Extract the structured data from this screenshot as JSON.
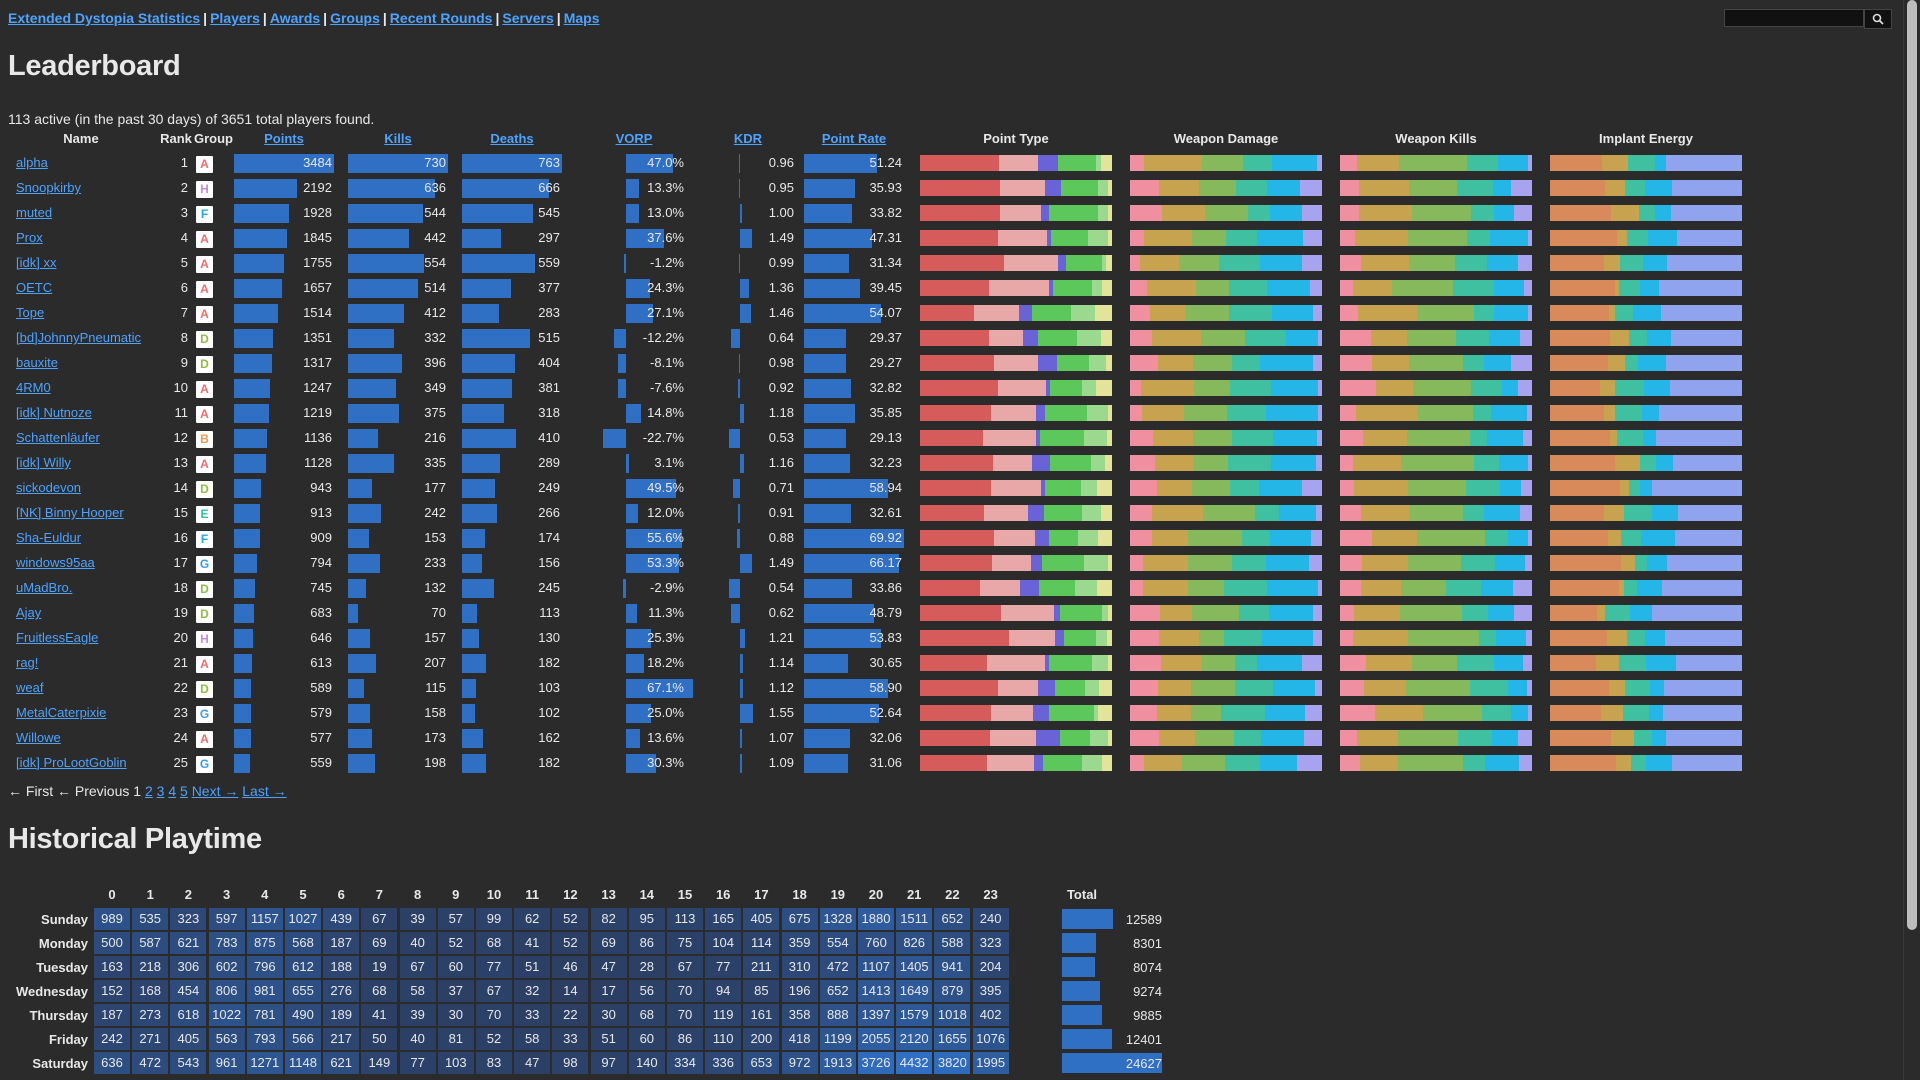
{
  "nav": {
    "links": [
      "Extended Dystopia Statistics",
      "Players",
      "Awards",
      "Groups",
      "Recent Rounds",
      "Servers",
      "Maps"
    ],
    "search_placeholder": ""
  },
  "leaderboard": {
    "title": "Leaderboard",
    "summary": "113 active (in the past 30 days) of 3651 total players found.",
    "headers": {
      "name": "Name",
      "rank": "Rank",
      "group": "Group",
      "points": "Points",
      "kills": "Kills",
      "deaths": "Deaths",
      "vorp": "VORP",
      "kdr": "KDR",
      "point_rate": "Point Rate",
      "point_type": "Point Type",
      "weapon_damage": "Weapon Damage",
      "weapon_kills": "Weapon Kills",
      "implant_energy": "Implant Energy"
    },
    "group_colors": {
      "A": "#ef6b6b",
      "H": "#c78be0",
      "F": "#23a8e0",
      "D": "#8fbf3f",
      "B": "#ee9955",
      "E": "#2bbf9f",
      "G": "#3a9de8"
    },
    "stack_colors": {
      "point_type": [
        "#d65b5b",
        "#e8a8a8",
        "#6a63d8",
        "#5cc85c",
        "#9ad98e",
        "#e3e39a",
        "#cfcf55"
      ],
      "weapon_damage": [
        "#ef8fa0",
        "#c7a24f",
        "#86b85c",
        "#3fc0a0",
        "#25b6e8",
        "#a8a3ef"
      ],
      "weapon_kills": [
        "#ef8fa0",
        "#c7a24f",
        "#86b85c",
        "#3fc0a0",
        "#25b6e8",
        "#a8a3ef"
      ],
      "implant_energy": [
        "#d98a5a",
        "#c7a24f",
        "#3fc0a0",
        "#25b6e8",
        "#8fa3ef",
        "#e8a0c8"
      ]
    },
    "rows": [
      {
        "name": "alpha",
        "rank": "1",
        "group": "A",
        "points": 3484,
        "kills": 730,
        "deaths": 763,
        "vorp": "47.0%",
        "vorp_num": 47.0,
        "kdr": "0.96",
        "kdr_num": 0.96,
        "rate": "51.24",
        "rate_num": 51.24
      },
      {
        "name": "Snoopkirby",
        "rank": "2",
        "group": "H",
        "points": 2192,
        "kills": 636,
        "deaths": 666,
        "vorp": "13.3%",
        "vorp_num": 13.3,
        "kdr": "0.95",
        "kdr_num": 0.95,
        "rate": "35.93",
        "rate_num": 35.93
      },
      {
        "name": "muted",
        "rank": "3",
        "group": "F",
        "points": 1928,
        "kills": 544,
        "deaths": 545,
        "vorp": "13.0%",
        "vorp_num": 13.0,
        "kdr": "1.00",
        "kdr_num": 1.0,
        "rate": "33.82",
        "rate_num": 33.82
      },
      {
        "name": "Prox",
        "rank": "4",
        "group": "A",
        "points": 1845,
        "kills": 442,
        "deaths": 297,
        "vorp": "37.6%",
        "vorp_num": 37.6,
        "kdr": "1.49",
        "kdr_num": 1.49,
        "rate": "47.31",
        "rate_num": 47.31
      },
      {
        "name": "[idk] xx",
        "rank": "5",
        "group": "A",
        "points": 1755,
        "kills": 554,
        "deaths": 559,
        "vorp": "-1.2%",
        "vorp_num": -1.2,
        "kdr": "0.99",
        "kdr_num": 0.99,
        "rate": "31.34",
        "rate_num": 31.34
      },
      {
        "name": "OETC",
        "rank": "6",
        "group": "A",
        "points": 1657,
        "kills": 514,
        "deaths": 377,
        "vorp": "24.3%",
        "vorp_num": 24.3,
        "kdr": "1.36",
        "kdr_num": 1.36,
        "rate": "39.45",
        "rate_num": 39.45
      },
      {
        "name": "Tope",
        "rank": "7",
        "group": "A",
        "points": 1514,
        "kills": 412,
        "deaths": 283,
        "vorp": "27.1%",
        "vorp_num": 27.1,
        "kdr": "1.46",
        "kdr_num": 1.46,
        "rate": "54.07",
        "rate_num": 54.07
      },
      {
        "name": "[bd]JohnnyPneumatic",
        "rank": "8",
        "group": "D",
        "points": 1351,
        "kills": 332,
        "deaths": 515,
        "vorp": "-12.2%",
        "vorp_num": -12.2,
        "kdr": "0.64",
        "kdr_num": 0.64,
        "rate": "29.37",
        "rate_num": 29.37
      },
      {
        "name": "bauxite",
        "rank": "9",
        "group": "D",
        "points": 1317,
        "kills": 396,
        "deaths": 404,
        "vorp": "-8.1%",
        "vorp_num": -8.1,
        "kdr": "0.98",
        "kdr_num": 0.98,
        "rate": "29.27",
        "rate_num": 29.27
      },
      {
        "name": "4RM0",
        "rank": "10",
        "group": "A",
        "points": 1247,
        "kills": 349,
        "deaths": 381,
        "vorp": "-7.6%",
        "vorp_num": -7.6,
        "kdr": "0.92",
        "kdr_num": 0.92,
        "rate": "32.82",
        "rate_num": 32.82
      },
      {
        "name": "[idk] Nutnoze",
        "rank": "11",
        "group": "A",
        "points": 1219,
        "kills": 375,
        "deaths": 318,
        "vorp": "14.8%",
        "vorp_num": 14.8,
        "kdr": "1.18",
        "kdr_num": 1.18,
        "rate": "35.85",
        "rate_num": 35.85
      },
      {
        "name": "Schattenläufer",
        "rank": "12",
        "group": "B",
        "points": 1136,
        "kills": 216,
        "deaths": 410,
        "vorp": "-22.7%",
        "vorp_num": -22.7,
        "kdr": "0.53",
        "kdr_num": 0.53,
        "rate": "29.13",
        "rate_num": 29.13
      },
      {
        "name": "[idk] Willy",
        "rank": "13",
        "group": "A",
        "points": 1128,
        "kills": 335,
        "deaths": 289,
        "vorp": "3.1%",
        "vorp_num": 3.1,
        "kdr": "1.16",
        "kdr_num": 1.16,
        "rate": "32.23",
        "rate_num": 32.23
      },
      {
        "name": "sickodevon",
        "rank": "14",
        "group": "D",
        "points": 943,
        "kills": 177,
        "deaths": 249,
        "vorp": "49.5%",
        "vorp_num": 49.5,
        "kdr": "0.71",
        "kdr_num": 0.71,
        "rate": "58.94",
        "rate_num": 58.94
      },
      {
        "name": "[NK] Binny Hooper",
        "rank": "15",
        "group": "E",
        "points": 913,
        "kills": 242,
        "deaths": 266,
        "vorp": "12.0%",
        "vorp_num": 12.0,
        "kdr": "0.91",
        "kdr_num": 0.91,
        "rate": "32.61",
        "rate_num": 32.61
      },
      {
        "name": "Sha-Euldur",
        "rank": "16",
        "group": "F",
        "points": 909,
        "kills": 153,
        "deaths": 174,
        "vorp": "55.6%",
        "vorp_num": 55.6,
        "kdr": "0.88",
        "kdr_num": 0.88,
        "rate": "69.92",
        "rate_num": 69.92
      },
      {
        "name": "windows95aa",
        "rank": "17",
        "group": "G",
        "points": 794,
        "kills": 233,
        "deaths": 156,
        "vorp": "53.3%",
        "vorp_num": 53.3,
        "kdr": "1.49",
        "kdr_num": 1.49,
        "rate": "66.17",
        "rate_num": 66.17
      },
      {
        "name": "uMadBro.",
        "rank": "18",
        "group": "D",
        "points": 745,
        "kills": 132,
        "deaths": 245,
        "vorp": "-2.9%",
        "vorp_num": -2.9,
        "kdr": "0.54",
        "kdr_num": 0.54,
        "rate": "33.86",
        "rate_num": 33.86
      },
      {
        "name": "Ajay",
        "rank": "19",
        "group": "D",
        "points": 683,
        "kills": 70,
        "deaths": 113,
        "vorp": "11.3%",
        "vorp_num": 11.3,
        "kdr": "0.62",
        "kdr_num": 0.62,
        "rate": "48.79",
        "rate_num": 48.79
      },
      {
        "name": "FruitlessEagle",
        "rank": "20",
        "group": "H",
        "points": 646,
        "kills": 157,
        "deaths": 130,
        "vorp": "25.3%",
        "vorp_num": 25.3,
        "kdr": "1.21",
        "kdr_num": 1.21,
        "rate": "53.83",
        "rate_num": 53.83
      },
      {
        "name": "rag!",
        "rank": "21",
        "group": "A",
        "points": 613,
        "kills": 207,
        "deaths": 182,
        "vorp": "18.2%",
        "vorp_num": 18.2,
        "kdr": "1.14",
        "kdr_num": 1.14,
        "rate": "30.65",
        "rate_num": 30.65
      },
      {
        "name": "weaf",
        "rank": "22",
        "group": "D",
        "points": 589,
        "kills": 115,
        "deaths": 103,
        "vorp": "67.1%",
        "vorp_num": 67.1,
        "kdr": "1.12",
        "kdr_num": 1.12,
        "rate": "58.90",
        "rate_num": 58.9
      },
      {
        "name": "MetalCaterpixie",
        "rank": "23",
        "group": "G",
        "points": 579,
        "kills": 158,
        "deaths": 102,
        "vorp": "25.0%",
        "vorp_num": 25.0,
        "kdr": "1.55",
        "kdr_num": 1.55,
        "rate": "52.64",
        "rate_num": 52.64
      },
      {
        "name": "Willowe",
        "rank": "24",
        "group": "A",
        "points": 577,
        "kills": 173,
        "deaths": 162,
        "vorp": "13.6%",
        "vorp_num": 13.6,
        "kdr": "1.07",
        "kdr_num": 1.07,
        "rate": "32.06",
        "rate_num": 32.06
      },
      {
        "name": "[idk] ProLootGoblin",
        "rank": "25",
        "group": "G",
        "points": 559,
        "kills": 198,
        "deaths": 182,
        "vorp": "30.3%",
        "vorp_num": 30.3,
        "kdr": "1.09",
        "kdr_num": 1.09,
        "rate": "31.06",
        "rate_num": 31.06
      }
    ],
    "pagination": {
      "first": "← First",
      "prev": "← Previous",
      "current": "1",
      "pages": [
        "2",
        "3",
        "4",
        "5"
      ],
      "next": "Next →",
      "last": "Last →"
    }
  },
  "playtime": {
    "title": "Historical Playtime",
    "hours": [
      "0",
      "1",
      "2",
      "3",
      "4",
      "5",
      "6",
      "7",
      "8",
      "9",
      "10",
      "11",
      "12",
      "13",
      "14",
      "15",
      "16",
      "17",
      "18",
      "19",
      "20",
      "21",
      "22",
      "23"
    ],
    "total_label": "Total",
    "rows": [
      {
        "day": "Sunday",
        "values": [
          989,
          535,
          323,
          597,
          1157,
          1027,
          439,
          67,
          39,
          57,
          99,
          62,
          52,
          82,
          95,
          113,
          165,
          405,
          675,
          1328,
          1880,
          1511,
          652,
          240
        ],
        "total": 12589
      },
      {
        "day": "Monday",
        "values": [
          500,
          587,
          621,
          783,
          875,
          568,
          187,
          69,
          40,
          52,
          68,
          41,
          52,
          69,
          86,
          75,
          104,
          114,
          359,
          554,
          760,
          826,
          588,
          323
        ],
        "total": 8301
      },
      {
        "day": "Tuesday",
        "values": [
          163,
          218,
          306,
          602,
          796,
          612,
          188,
          19,
          67,
          60,
          77,
          51,
          46,
          47,
          28,
          67,
          77,
          211,
          310,
          472,
          1107,
          1405,
          941,
          204
        ],
        "total": 8074
      },
      {
        "day": "Wednesday",
        "values": [
          152,
          168,
          454,
          806,
          981,
          655,
          276,
          68,
          58,
          37,
          67,
          32,
          14,
          17,
          56,
          70,
          94,
          85,
          196,
          652,
          1413,
          1649,
          879,
          395
        ],
        "total": 9274
      },
      {
        "day": "Thursday",
        "values": [
          187,
          273,
          618,
          1022,
          781,
          490,
          189,
          41,
          39,
          30,
          70,
          33,
          22,
          30,
          68,
          70,
          119,
          161,
          358,
          888,
          1397,
          1579,
          1018,
          402
        ],
        "total": 9885
      },
      {
        "day": "Friday",
        "values": [
          242,
          271,
          405,
          563,
          793,
          566,
          217,
          50,
          40,
          81,
          52,
          58,
          33,
          51,
          60,
          86,
          110,
          200,
          418,
          1199,
          2055,
          2120,
          1655,
          1076
        ],
        "total": 12401
      },
      {
        "day": "Saturday",
        "values": [
          636,
          472,
          543,
          961,
          1271,
          1148,
          621,
          149,
          77,
          103,
          83,
          47,
          98,
          97,
          140,
          334,
          336,
          653,
          972,
          1913,
          3726,
          4432,
          3820,
          1995
        ],
        "total": 24627
      }
    ]
  }
}
